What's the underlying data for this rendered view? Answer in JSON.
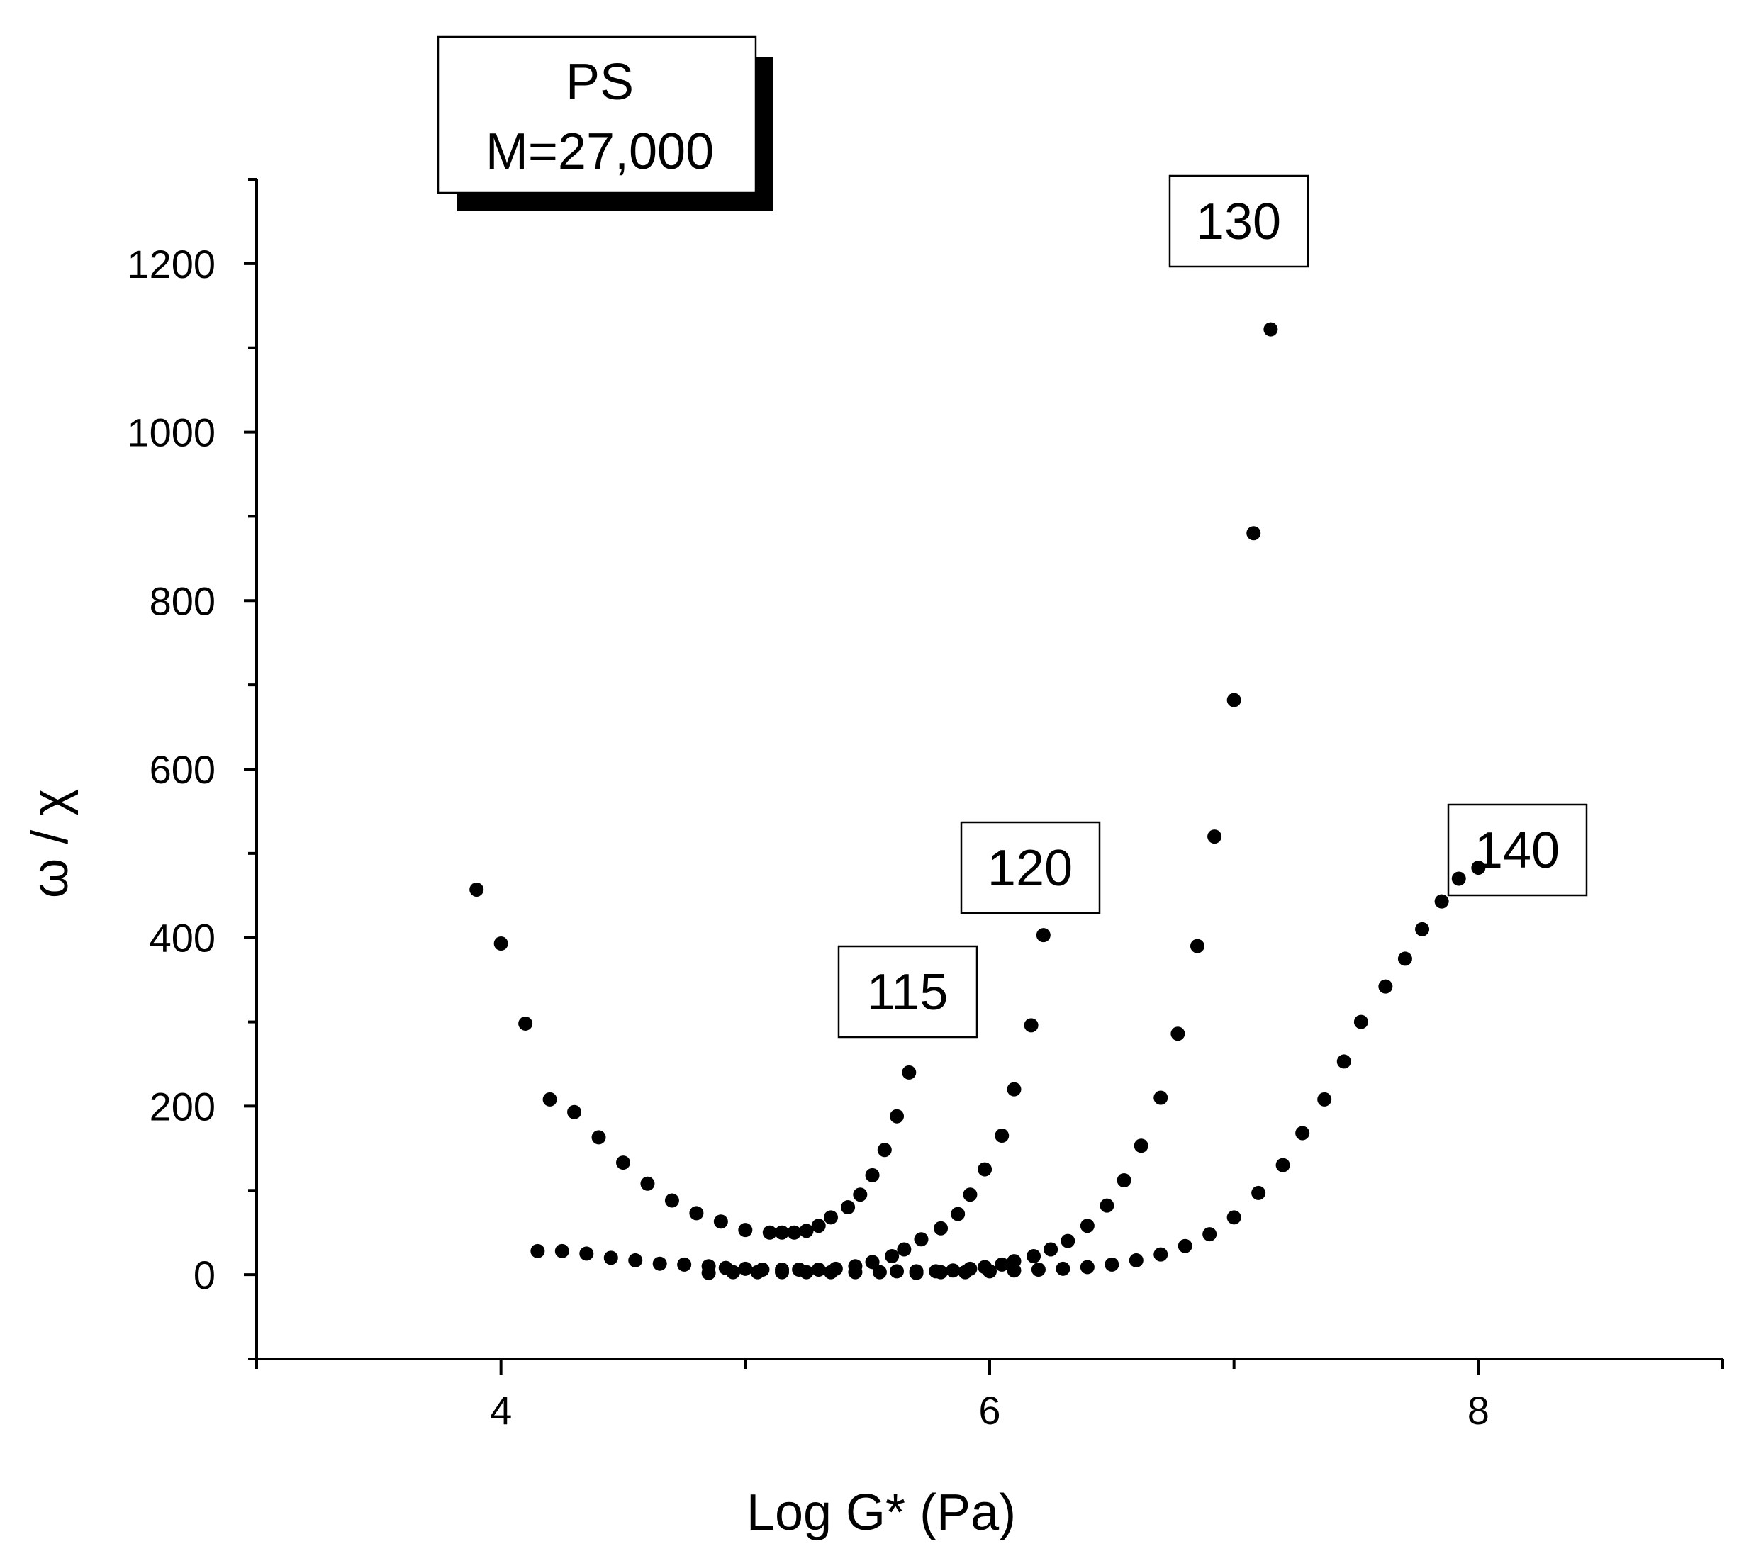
{
  "chart_data": {
    "type": "scatter",
    "xlabel": "Log G*   (Pa)",
    "ylabel": "ω / χ",
    "xlim": [
      3,
      9
    ],
    "ylim": [
      -100,
      1300
    ],
    "x_ticks": [
      4,
      6,
      8
    ],
    "y_ticks": [
      0,
      200,
      400,
      600,
      800,
      1000,
      1200
    ],
    "grid": false,
    "annotations": {
      "title_box": [
        "PS",
        "M=27,000"
      ],
      "curve_labels": [
        "130",
        "120",
        "115",
        "140"
      ]
    },
    "series": [
      {
        "label": "115",
        "points": [
          [
            3.9,
            457
          ],
          [
            4.0,
            393
          ],
          [
            4.1,
            298
          ],
          [
            4.2,
            208
          ],
          [
            4.3,
            193
          ],
          [
            4.4,
            163
          ],
          [
            4.5,
            133
          ],
          [
            4.6,
            108
          ],
          [
            4.7,
            88
          ],
          [
            4.8,
            73
          ],
          [
            4.9,
            63
          ],
          [
            5.0,
            53
          ],
          [
            5.1,
            50
          ],
          [
            5.15,
            50
          ],
          [
            5.2,
            50
          ],
          [
            5.25,
            52
          ],
          [
            5.3,
            58
          ],
          [
            5.35,
            68
          ],
          [
            5.42,
            80
          ],
          [
            5.47,
            95
          ],
          [
            5.52,
            118
          ],
          [
            5.57,
            148
          ],
          [
            5.62,
            188
          ],
          [
            5.67,
            240
          ]
        ]
      },
      {
        "label": "120",
        "points": [
          [
            4.15,
            28
          ],
          [
            4.25,
            28
          ],
          [
            4.35,
            25
          ],
          [
            4.45,
            20
          ],
          [
            4.55,
            17
          ],
          [
            4.65,
            13
          ],
          [
            4.75,
            12
          ],
          [
            4.85,
            10
          ],
          [
            4.92,
            8
          ],
          [
            5.0,
            7
          ],
          [
            5.07,
            6
          ],
          [
            5.15,
            6
          ],
          [
            5.22,
            6
          ],
          [
            5.3,
            6
          ],
          [
            5.37,
            7
          ],
          [
            5.45,
            10
          ],
          [
            5.52,
            15
          ],
          [
            5.6,
            22
          ],
          [
            5.65,
            30
          ],
          [
            5.72,
            42
          ],
          [
            5.8,
            55
          ],
          [
            5.87,
            72
          ],
          [
            5.92,
            95
          ],
          [
            5.98,
            125
          ],
          [
            6.05,
            165
          ],
          [
            6.1,
            220
          ],
          [
            6.17,
            296
          ],
          [
            6.22,
            403
          ]
        ]
      },
      {
        "label": "130",
        "points": [
          [
            4.85,
            2
          ],
          [
            4.95,
            3
          ],
          [
            5.05,
            3
          ],
          [
            5.15,
            3
          ],
          [
            5.25,
            3
          ],
          [
            5.35,
            3
          ],
          [
            5.45,
            3
          ],
          [
            5.55,
            3
          ],
          [
            5.62,
            4
          ],
          [
            5.7,
            4
          ],
          [
            5.78,
            4
          ],
          [
            5.85,
            5
          ],
          [
            5.92,
            7
          ],
          [
            5.98,
            9
          ],
          [
            6.05,
            12
          ],
          [
            6.1,
            16
          ],
          [
            6.18,
            22
          ],
          [
            6.25,
            30
          ],
          [
            6.32,
            40
          ],
          [
            6.4,
            58
          ],
          [
            6.48,
            82
          ],
          [
            6.55,
            112
          ],
          [
            6.62,
            153
          ],
          [
            6.7,
            210
          ],
          [
            6.77,
            286
          ],
          [
            6.85,
            390
          ],
          [
            6.92,
            520
          ],
          [
            7.0,
            682
          ],
          [
            7.08,
            880
          ],
          [
            7.15,
            1122
          ]
        ]
      },
      {
        "label": "140",
        "points": [
          [
            5.7,
            2
          ],
          [
            5.8,
            3
          ],
          [
            5.9,
            3
          ],
          [
            6.0,
            4
          ],
          [
            6.1,
            5
          ],
          [
            6.2,
            6
          ],
          [
            6.3,
            7
          ],
          [
            6.4,
            9
          ],
          [
            6.5,
            12
          ],
          [
            6.6,
            17
          ],
          [
            6.7,
            24
          ],
          [
            6.8,
            34
          ],
          [
            6.9,
            48
          ],
          [
            7.0,
            68
          ],
          [
            7.1,
            97
          ],
          [
            7.2,
            130
          ],
          [
            7.28,
            168
          ],
          [
            7.37,
            208
          ],
          [
            7.45,
            253
          ],
          [
            7.52,
            300
          ],
          [
            7.62,
            342
          ],
          [
            7.7,
            375
          ],
          [
            7.77,
            410
          ],
          [
            7.85,
            443
          ],
          [
            7.92,
            470
          ],
          [
            8.0,
            483
          ]
        ]
      }
    ]
  }
}
